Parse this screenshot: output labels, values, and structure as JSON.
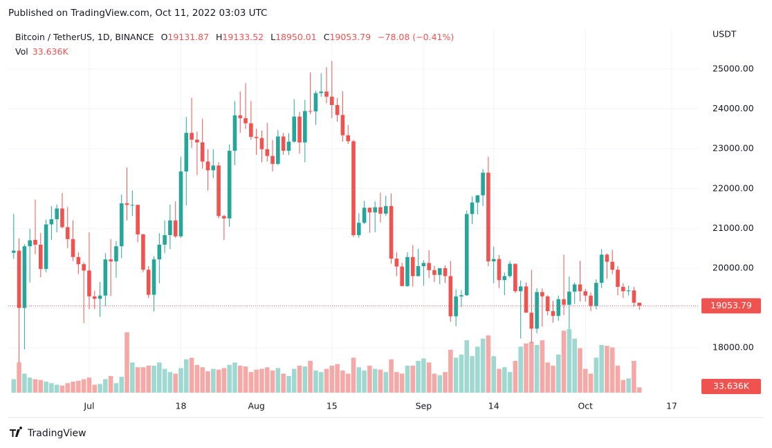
{
  "header": "Published on TradingView.com, Oct 11, 2022 03:03 UTC",
  "footer": "TradingView",
  "chart_data": {
    "type": "candlestick",
    "title": "Bitcoin / TetherUS, 1D, BINANCE",
    "legend_labels": {
      "open": "O",
      "high": "H",
      "low": "L",
      "close": "C",
      "volume": "Vol"
    },
    "change_label": "−78.08 (−0.41%)",
    "last_volume_label": "33.636K",
    "y_unit": "USDT",
    "up_color": "#26a69a",
    "down_color": "#ef5350",
    "volume_up_color": "#9ed8d0",
    "volume_down_color": "#f5a9a7",
    "xlim": [
      "2022-06-16",
      "2022-10-22"
    ],
    "xticks": [
      {
        "value": "2022-07-01",
        "label": "Jul"
      },
      {
        "value": "2022-07-18",
        "label": "18"
      },
      {
        "value": "2022-08-01",
        "label": "Aug"
      },
      {
        "value": "2022-08-15",
        "label": "15"
      },
      {
        "value": "2022-09-01",
        "label": "Sep"
      },
      {
        "value": "2022-09-14",
        "label": "14"
      },
      {
        "value": "2022-10-01",
        "label": "Oct"
      },
      {
        "value": "2022-10-17",
        "label": "17"
      }
    ],
    "ylim": [
      16870,
      26010
    ],
    "yticks": [
      {
        "value": 18000,
        "label": "18000.00"
      },
      {
        "value": 19000,
        "label": "19000.00"
      },
      {
        "value": 20000,
        "label": "20000.00"
      },
      {
        "value": 21000,
        "label": "21000.00"
      },
      {
        "value": 22000,
        "label": "22000.00"
      },
      {
        "value": 23000,
        "label": "23000.00"
      },
      {
        "value": 24000,
        "label": "24000.00"
      },
      {
        "value": 25000,
        "label": "25000.00"
      }
    ],
    "grid": true,
    "x_start": "2022-06-17",
    "open": [
      20386,
      20440,
      19000,
      20550,
      20710,
      20590,
      19980,
      21100,
      21230,
      21500,
      21030,
      20730,
      20280,
      20100,
      19940,
      19290,
      19230,
      19310,
      20220,
      20170,
      20550,
      21630,
      21590,
      21590,
      20850,
      19960,
      19330,
      20220,
      20590,
      20830,
      21200,
      20800,
      22430,
      23400,
      23230,
      23160,
      22680,
      22460,
      22580,
      21310,
      21250,
      22950,
      23840,
      23770,
      23640,
      23300,
      23270,
      22990,
      22820,
      22620,
      23310,
      22950,
      23180,
      23810,
      23160,
      23950,
      23940,
      24400,
      24440,
      24310,
      24100,
      23850,
      23340,
      23190,
      20830,
      21140,
      21520,
      21400,
      21530,
      21370,
      21560,
      20240,
      20040,
      19550,
      20280,
      19800,
      20050,
      20130,
      19950,
      19830,
      20000,
      19800,
      18790,
      19290,
      19320,
      21360,
      21650,
      21830,
      22400,
      20170,
      20230,
      19700,
      19800,
      20110,
      19420,
      19540,
      18880,
      18480,
      19400,
      19290,
      18920,
      18800,
      19220,
      19080,
      19410,
      19590,
      19420,
      19310,
      19050,
      19630,
      20340,
      20160,
      19960,
      19530,
      19420,
      19440,
      19131.87
    ],
    "high": [
      21365,
      20750,
      20600,
      20990,
      21720,
      20880,
      21220,
      21560,
      21600,
      21890,
      21540,
      21200,
      20400,
      20150,
      20900,
      19430,
      19650,
      20380,
      20730,
      20680,
      21850,
      22530,
      21950,
      21600,
      20860,
      20050,
      20300,
      20880,
      21200,
      21600,
      21680,
      22800,
      23800,
      24280,
      23430,
      23760,
      22990,
      22990,
      22660,
      21340,
      23110,
      24200,
      24440,
      24650,
      24200,
      23510,
      23460,
      23650,
      23220,
      23470,
      23400,
      23390,
      24250,
      23930,
      24230,
      24920,
      24460,
      24900,
      25050,
      25210,
      24280,
      24450,
      23600,
      23220,
      21380,
      21690,
      21520,
      21680,
      21900,
      21820,
      21880,
      20400,
      20140,
      20400,
      20580,
      20490,
      20200,
      20450,
      20060,
      20000,
      20070,
      20180,
      19470,
      19450,
      21450,
      21800,
      21840,
      22490,
      22800,
      20540,
      20330,
      19890,
      20180,
      20100,
      19690,
      19640,
      19960,
      19500,
      19490,
      19320,
      19180,
      19310,
      20340,
      19790,
      19640,
      20180,
      19480,
      19390,
      19720,
      20480,
      20370,
      20460,
      20050,
      19620,
      19560,
      19530,
      19133.52
    ],
    "low": [
      20230,
      17622,
      17960,
      19640,
      20350,
      19770,
      19900,
      20710,
      20900,
      21000,
      20500,
      20180,
      19850,
      18620,
      18970,
      18970,
      18780,
      19050,
      19300,
      19760,
      20250,
      21200,
      21310,
      20650,
      19900,
      19250,
      18910,
      19620,
      20380,
      20480,
      20760,
      20760,
      21580,
      23020,
      22340,
      22500,
      21950,
      22260,
      21250,
      20710,
      21040,
      22590,
      23400,
      23500,
      23230,
      22850,
      22660,
      22680,
      22430,
      22590,
      22850,
      22840,
      23150,
      22880,
      22660,
      23870,
      23600,
      24310,
      24140,
      23770,
      23680,
      23180,
      23120,
      20780,
      20760,
      21110,
      20890,
      20900,
      21150,
      21310,
      20110,
      19800,
      19550,
      19530,
      19540,
      19790,
      19560,
      19750,
      19650,
      19600,
      19630,
      18650,
      18540,
      19020,
      19300,
      21110,
      21350,
      21560,
      20050,
      19620,
      19500,
      19320,
      19760,
      19370,
      18230,
      18900,
      18120,
      18360,
      18530,
      18810,
      18630,
      18680,
      18820,
      18470,
      19100,
      19160,
      19160,
      18920,
      18960,
      19500,
      19730,
      19850,
      19320,
      19250,
      19310,
      19030,
      18950.01
    ],
    "close": [
      20440,
      19000,
      20550,
      20700,
      20590,
      19980,
      21100,
      21230,
      21500,
      21030,
      20730,
      20280,
      20100,
      19940,
      19290,
      19230,
      19310,
      20220,
      20170,
      20550,
      21630,
      21590,
      21590,
      20850,
      19960,
      19330,
      20220,
      20590,
      20830,
      21200,
      20800,
      22430,
      23400,
      23230,
      23160,
      22680,
      22460,
      22580,
      21310,
      21250,
      22950,
      23840,
      23770,
      23640,
      23300,
      23270,
      22990,
      22820,
      22620,
      23310,
      22950,
      23180,
      23810,
      23160,
      23950,
      23940,
      24400,
      24440,
      24310,
      24100,
      23850,
      23340,
      23190,
      20830,
      21140,
      21520,
      21400,
      21530,
      21370,
      21560,
      20240,
      20040,
      19550,
      20280,
      19800,
      20050,
      20130,
      19950,
      19830,
      20000,
      19800,
      18790,
      19290,
      19320,
      21360,
      21650,
      21830,
      22400,
      20170,
      20230,
      19700,
      19800,
      20110,
      19420,
      19540,
      18880,
      18480,
      19400,
      19290,
      18920,
      18800,
      19220,
      19080,
      19410,
      19590,
      19420,
      19310,
      19050,
      19630,
      20340,
      20160,
      19960,
      19530,
      19420,
      19440,
      19131.87,
      19053.79
    ],
    "volume": [
      85,
      190,
      120,
      95,
      85,
      80,
      70,
      60,
      50,
      45,
      60,
      70,
      75,
      85,
      95,
      50,
      55,
      85,
      105,
      60,
      100,
      380,
      190,
      160,
      160,
      170,
      170,
      190,
      150,
      130,
      120,
      155,
      210,
      220,
      175,
      160,
      135,
      150,
      145,
      155,
      175,
      190,
      170,
      165,
      130,
      145,
      150,
      160,
      140,
      155,
      120,
      105,
      150,
      170,
      165,
      200,
      140,
      130,
      150,
      170,
      180,
      140,
      120,
      220,
      160,
      140,
      170,
      150,
      145,
      130,
      210,
      130,
      120,
      170,
      170,
      200,
      215,
      190,
      120,
      110,
      130,
      270,
      220,
      240,
      330,
      230,
      290,
      340,
      360,
      230,
      150,
      160,
      130,
      200,
      290,
      310,
      320,
      300,
      330,
      190,
      170,
      240,
      390,
      400,
      340,
      280,
      150,
      120,
      220,
      300,
      295,
      285,
      170,
      80,
      90,
      200,
      33.636
    ]
  }
}
